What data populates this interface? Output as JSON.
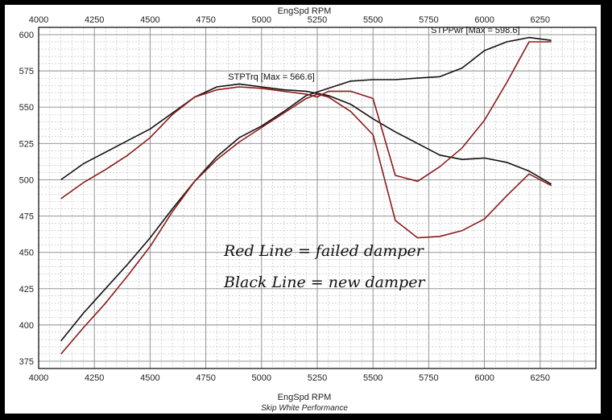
{
  "chart_data": {
    "type": "line",
    "xlabel": "EngSpd RPM",
    "footer": "Skip White Performance",
    "xlim": [
      4000,
      6500
    ],
    "ylim": [
      370,
      605
    ],
    "x_ticks": [
      4000,
      4250,
      4500,
      4750,
      5000,
      5250,
      5500,
      5750,
      6000,
      6250
    ],
    "y_ticks": [
      375,
      400,
      425,
      450,
      475,
      500,
      525,
      550,
      575,
      600
    ],
    "grid": true,
    "annotations": [
      {
        "text": "STPPwr [Max = 598.6]",
        "x": 5760,
        "y": 601
      },
      {
        "text": "STPTrq [Max = 566.6]",
        "x": 4850,
        "y": 569
      }
    ],
    "handwritten_notes": [
      "Red Line = failed damper",
      "Black Line = new damper"
    ],
    "series": [
      {
        "color": "#111111",
        "x": [
          4100,
          4200,
          4300,
          4400,
          4500,
          4600,
          4700,
          4800,
          4900,
          5000,
          5100,
          5200,
          5300,
          5400,
          5500,
          5600,
          5700,
          5800,
          5900,
          6000,
          6100,
          6200,
          6300
        ],
        "values": [
          389,
          408,
          425,
          442,
          460,
          480,
          499,
          516,
          529,
          537,
          547,
          558,
          563,
          568,
          569,
          569,
          570,
          571,
          577,
          589,
          595,
          598,
          596
        ]
      },
      {
        "color": "#111111",
        "x": [
          4100,
          4200,
          4300,
          4400,
          4500,
          4600,
          4700,
          4800,
          4900,
          5000,
          5100,
          5200,
          5300,
          5400,
          5500,
          5600,
          5700,
          5800,
          5900,
          6000,
          6100,
          6200,
          6300
        ],
        "values": [
          500,
          511,
          519,
          527,
          535,
          546,
          557,
          564,
          566,
          564,
          562,
          561,
          558,
          552,
          542,
          533,
          525,
          517,
          514,
          515,
          512,
          506,
          497
        ]
      },
      {
        "color": "#8b1a1a",
        "x": [
          4100,
          4200,
          4300,
          4400,
          4500,
          4600,
          4700,
          4800,
          4900,
          5000,
          5100,
          5200,
          5250,
          5300,
          5400,
          5500,
          5600,
          5700,
          5800,
          5900,
          6000,
          6100,
          6200,
          6300
        ],
        "values": [
          380,
          398,
          415,
          434,
          454,
          478,
          499,
          514,
          526,
          536,
          546,
          556,
          559,
          557,
          547,
          531,
          472,
          460,
          461,
          465,
          473,
          489,
          504,
          496
        ]
      },
      {
        "color": "#8b1a1a",
        "x": [
          4100,
          4200,
          4300,
          4400,
          4500,
          4600,
          4700,
          4800,
          4900,
          5000,
          5100,
          5200,
          5250,
          5300,
          5400,
          5500,
          5600,
          5700,
          5800,
          5900,
          6000,
          6100,
          6200,
          6300
        ],
        "values": [
          487,
          498,
          507,
          517,
          529,
          545,
          557,
          562,
          564,
          563,
          561,
          559,
          557,
          561,
          561,
          556,
          503,
          499,
          509,
          522,
          541,
          567,
          595,
          595
        ]
      }
    ]
  }
}
